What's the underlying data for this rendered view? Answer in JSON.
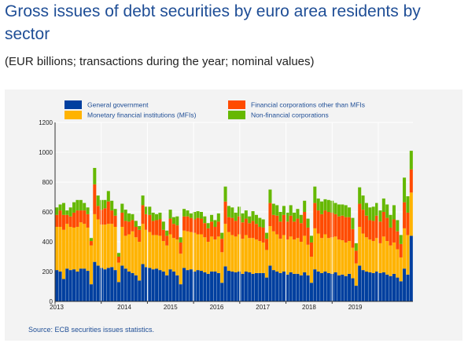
{
  "title": "Gross issues of debt securities by euro area residents by sector",
  "subtitle": "(EUR billions; transactions during the year; nominal values)",
  "source": "Source: ECB securities issues statistics.",
  "chart_data": {
    "type": "bar",
    "stacked": true,
    "ylim": [
      0,
      1200
    ],
    "yticks": [
      0,
      200,
      400,
      600,
      800,
      1000,
      1200
    ],
    "year_labels": [
      "2013",
      "2014",
      "2015",
      "2016",
      "2017",
      "2018",
      "2019"
    ],
    "legend_columns": 2,
    "grid": true,
    "series": [
      {
        "name": "General government",
        "color": "#003f9f",
        "values": [
          210,
          200,
          150,
          220,
          210,
          215,
          200,
          220,
          220,
          205,
          115,
          265,
          240,
          225,
          215,
          225,
          230,
          210,
          130,
          240,
          220,
          200,
          190,
          175,
          140,
          250,
          230,
          225,
          215,
          220,
          210,
          200,
          175,
          215,
          200,
          175,
          115,
          225,
          210,
          215,
          200,
          210,
          205,
          195,
          185,
          200,
          200,
          190,
          125,
          235,
          205,
          200,
          195,
          200,
          185,
          200,
          195,
          185,
          190,
          190,
          190,
          160,
          240,
          210,
          200,
          190,
          200,
          180,
          195,
          185,
          185,
          175,
          195,
          175,
          125,
          215,
          200,
          190,
          200,
          190,
          185,
          195,
          175,
          180,
          170,
          185,
          155,
          105,
          240,
          210,
          200,
          195,
          190,
          200,
          190,
          195,
          180,
          170,
          185,
          160,
          135,
          220,
          180,
          440
        ]
      },
      {
        "name": "Monetary financial institutions (MFIs)",
        "color": "#ffb300",
        "values": [
          290,
          300,
          330,
          300,
          290,
          280,
          300,
          310,
          300,
          290,
          260,
          320,
          310,
          290,
          300,
          295,
          290,
          290,
          130,
          260,
          220,
          250,
          280,
          255,
          260,
          270,
          250,
          240,
          230,
          225,
          230,
          205,
          200,
          235,
          225,
          240,
          205,
          250,
          260,
          250,
          260,
          240,
          245,
          235,
          215,
          235,
          215,
          245,
          205,
          285,
          260,
          245,
          240,
          250,
          235,
          245,
          230,
          240,
          225,
          215,
          205,
          185,
          265,
          260,
          250,
          230,
          245,
          235,
          240,
          230,
          240,
          225,
          245,
          205,
          175,
          275,
          255,
          235,
          250,
          235,
          245,
          240,
          240,
          230,
          225,
          220,
          205,
          150,
          260,
          245,
          230,
          220,
          215,
          225,
          200,
          240,
          225,
          205,
          210,
          190,
          160,
          270,
          265,
          290
        ]
      },
      {
        "name": "Financial corporations other than MFIs",
        "color": "#ff4b00",
        "values": [
          80,
          110,
          100,
          60,
          70,
          100,
          110,
          80,
          90,
          90,
          30,
          200,
          90,
          100,
          110,
          150,
          90,
          75,
          40,
          95,
          100,
          85,
          75,
          70,
          80,
          125,
          105,
          115,
          95,
          100,
          110,
          75,
          65,
          105,
          95,
          95,
          75,
          95,
          100,
          95,
          90,
          110,
          105,
          95,
          90,
          100,
          85,
          100,
          90,
          150,
          100,
          115,
          105,
          120,
          110,
          110,
          100,
          115,
          105,
          95,
          100,
          75,
          155,
          110,
          125,
          115,
          135,
          120,
          140,
          120,
          130,
          125,
          160,
          115,
          95,
          170,
          155,
          160,
          160,
          175,
          165,
          150,
          155,
          165,
          170,
          160,
          125,
          85,
          155,
          160,
          145,
          130,
          135,
          150,
          145,
          165,
          155,
          120,
          155,
          120,
          90,
          175,
          150,
          155
        ]
      },
      {
        "name": "Non-financial corporations",
        "color": "#65b800",
        "values": [
          50,
          40,
          80,
          30,
          60,
          70,
          70,
          70,
          50,
          45,
          20,
          110,
          70,
          65,
          55,
          70,
          65,
          45,
          25,
          60,
          75,
          55,
          40,
          40,
          25,
          65,
          50,
          55,
          55,
          40,
          45,
          55,
          35,
          60,
          45,
          60,
          35,
          50,
          40,
          30,
          50,
          45,
          45,
          45,
          35,
          45,
          45,
          55,
          40,
          100,
          75,
          70,
          55,
          65,
          60,
          55,
          45,
          65,
          60,
          60,
          55,
          40,
          90,
          75,
          70,
          65,
          60,
          60,
          70,
          60,
          65,
          55,
          75,
          60,
          45,
          110,
          80,
          85,
          75,
          80,
          80,
          75,
          80,
          75,
          80,
          65,
          75,
          50,
          110,
          95,
          85,
          85,
          95,
          85,
          75,
          90,
          90,
          85,
          95,
          75,
          60,
          165,
          110,
          125
        ]
      }
    ]
  }
}
